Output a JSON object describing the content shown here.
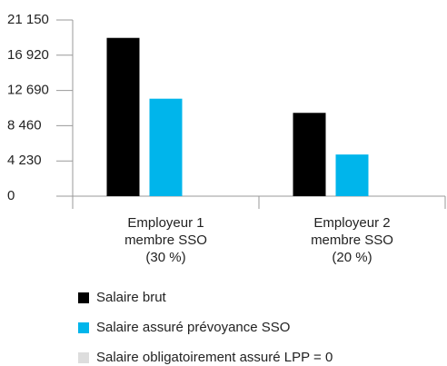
{
  "chart_data": {
    "type": "bar",
    "categories": [
      "Employeur 1\nmembre SSO\n(30 %)",
      "Employeur 2\nmembre SSO\n(20 %)"
    ],
    "series": [
      {
        "name": "Salaire brut",
        "color": "#000000",
        "values": [
          19000,
          10000
        ]
      },
      {
        "name": "Salaire assuré prévoyance SSO",
        "color": "#00b5eb",
        "values": [
          11700,
          5000
        ]
      },
      {
        "name": "Salaire obligatoirement assuré LPP = 0",
        "color": "#dddddd",
        "values": [
          0,
          0
        ]
      }
    ],
    "ylim": [
      0,
      21150
    ],
    "yticks": [
      0,
      {
        "value": 4230,
        "label": "4 230"
      },
      {
        "value": 8460,
        "label": "8 460"
      },
      {
        "value": 12690,
        "label": "12 690"
      },
      {
        "value": 16920,
        "label": "16 920"
      },
      {
        "value": 21150,
        "label": "21 150"
      }
    ],
    "legend": "bottom"
  }
}
